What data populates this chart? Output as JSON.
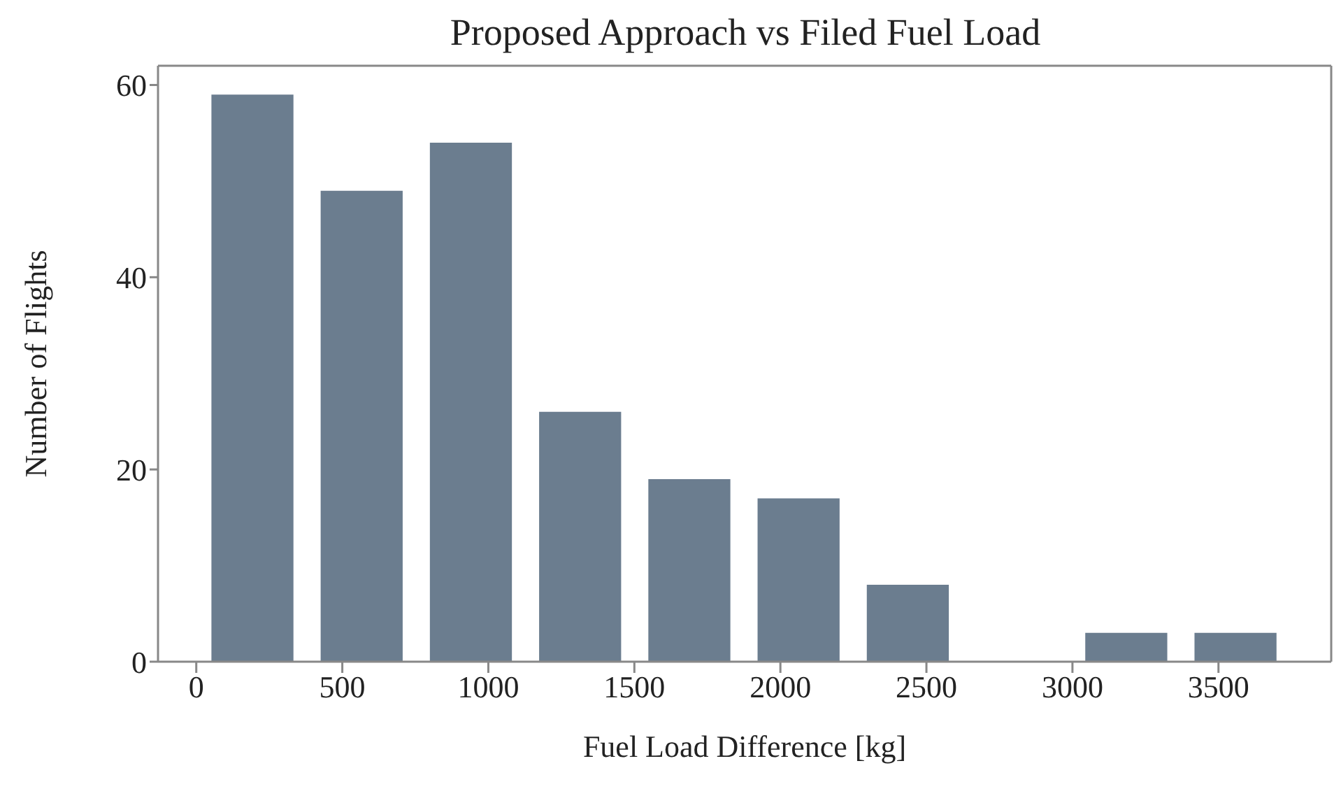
{
  "chart_data": {
    "type": "histogram",
    "title": "Proposed Approach vs Filed Fuel Load",
    "xlabel": "Fuel Load Difference [kg]",
    "ylabel": "Number of Flights",
    "bins": [
      4,
      378,
      752,
      1126,
      1500,
      1874,
      2248,
      2622,
      2996,
      3370,
      3744
    ],
    "values": [
      59,
      49,
      54,
      26,
      19,
      17,
      8,
      0,
      3,
      3
    ],
    "color": "#6b7d8f",
    "xlim": [
      -131,
      3886
    ],
    "xticks": [
      0,
      500,
      1000,
      1500,
      2000,
      2500,
      3000,
      3500
    ],
    "ylim": [
      0,
      62
    ],
    "yticks": [
      0,
      20,
      40,
      60
    ],
    "grid": false
  }
}
